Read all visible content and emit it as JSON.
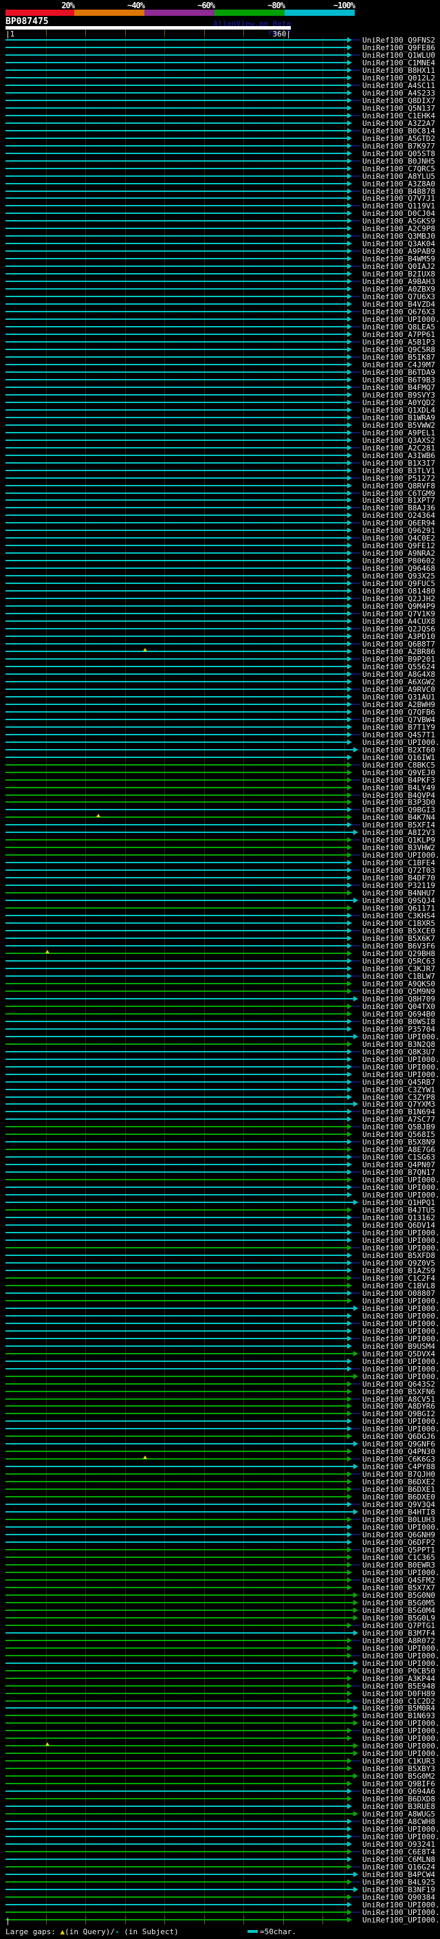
{
  "colors": {
    "cyan": "#00C6C6",
    "green": "#00A800",
    "tail_navy": "#131366",
    "scale_red": "#E81123",
    "scale_orange": "#DE7800",
    "scale_purple": "#8F2A95",
    "scale_green": "#00A000",
    "scale_cyan": "#00B9CE",
    "gap_yellow": "#E8D400",
    "grid_olive": "#62621C",
    "query_white": "#FFFFFF"
  },
  "header": {
    "scale_labels": [
      "20%",
      "~40%",
      "~60%",
      "~80%",
      "~100%"
    ],
    "query_name": "BP087475",
    "watermark": "AlignView.pm Beta rel.7",
    "ruler_start": "|1",
    "ruler_end": "360|"
  },
  "footer": {
    "gaps_prefix": "Large gaps: ",
    "gap_query_symbol": "▲",
    "gaps_mid": "(in Query)/",
    "gap_subject_symbol": "-",
    "gaps_suffix": " (in Subject)",
    "bottom_tick": "|",
    "scalebar_label": "=50char."
  },
  "chart_data": {
    "type": "alignment",
    "query": "BP087475",
    "query_range": [
      1,
      360
    ],
    "ruler_interval_chars": 50,
    "identity_scale": [
      {
        "label": "20%",
        "color": "#E81123"
      },
      {
        "label": "~40%",
        "color": "#DE7800"
      },
      {
        "label": "~60%",
        "color": "#8F2A95"
      },
      {
        "label": "~80%",
        "color": "#00A000"
      },
      {
        "label": "~100%",
        "color": "#00B9CE"
      }
    ],
    "hit_prefix": "UniRef100_",
    "hit_fields": [
      "id",
      "identity_color(c=~100%,g=~80%)",
      "subject_overhang_tail",
      "extended_end",
      "query_gap_mark_x"
    ],
    "hits": [
      [
        "Q9FNS2",
        "c",
        1,
        0
      ],
      [
        "Q9FE86",
        "c",
        0,
        0
      ],
      [
        "Q1WLU0",
        "c",
        1,
        0
      ],
      [
        "C1MNE4",
        "c",
        0,
        0
      ],
      [
        "B8HX11",
        "c",
        1,
        0
      ],
      [
        "Q012L2",
        "c",
        0,
        0
      ],
      [
        "A4SC11",
        "c",
        1,
        0
      ],
      [
        "A4S233",
        "c",
        0,
        0
      ],
      [
        "Q8DIX7",
        "c",
        1,
        0
      ],
      [
        "Q5N137",
        "c",
        0,
        0
      ],
      [
        "C1EHK4",
        "c",
        1,
        0
      ],
      [
        "A3Z2A7",
        "c",
        0,
        0
      ],
      [
        "B0C814",
        "c",
        1,
        0
      ],
      [
        "A5GTD2",
        "c",
        0,
        0
      ],
      [
        "B7K977",
        "c",
        1,
        0
      ],
      [
        "Q05ST8",
        "c",
        0,
        0
      ],
      [
        "B0JNH5",
        "c",
        1,
        0
      ],
      [
        "C7QRC5",
        "c",
        0,
        0
      ],
      [
        "A8YLU5",
        "c",
        1,
        0
      ],
      [
        "A3Z8A0",
        "c",
        0,
        0
      ],
      [
        "B4B878",
        "c",
        1,
        0
      ],
      [
        "Q7V7J1",
        "c",
        0,
        0
      ],
      [
        "Q119V1",
        "c",
        1,
        0
      ],
      [
        "D0CJ04",
        "c",
        0,
        0
      ],
      [
        "A5GKS9",
        "c",
        1,
        0
      ],
      [
        "A2C9P8",
        "c",
        0,
        0
      ],
      [
        "Q3MBJ0",
        "c",
        1,
        0
      ],
      [
        "Q3AK04",
        "c",
        0,
        0
      ],
      [
        "A9PAB9",
        "c",
        1,
        0
      ],
      [
        "B4WM59",
        "c",
        0,
        0
      ],
      [
        "Q0IAJ2",
        "c",
        1,
        0
      ],
      [
        "B2IUX8",
        "c",
        0,
        0
      ],
      [
        "A9BAH3",
        "c",
        1,
        0
      ],
      [
        "A0ZBX9",
        "c",
        0,
        0
      ],
      [
        "Q7U6X3",
        "c",
        1,
        0
      ],
      [
        "B4VZD4",
        "c",
        0,
        0
      ],
      [
        "Q676X3",
        "c",
        1,
        0
      ],
      [
        "UPI000..",
        "c",
        0,
        0
      ],
      [
        "Q8LEA5",
        "c",
        1,
        0
      ],
      [
        "A7PP61",
        "c",
        0,
        0
      ],
      [
        "A5B1P3",
        "c",
        1,
        0
      ],
      [
        "Q9C5R8",
        "c",
        0,
        0
      ],
      [
        "B5IK87",
        "c",
        1,
        0
      ],
      [
        "C4J9M7",
        "c",
        0,
        0
      ],
      [
        "B6TDA9",
        "c",
        1,
        0
      ],
      [
        "B6T9B3",
        "c",
        0,
        0
      ],
      [
        "B4FMQ7",
        "c",
        1,
        0
      ],
      [
        "B9SVY3",
        "c",
        0,
        0
      ],
      [
        "A0YQD2",
        "c",
        1,
        0
      ],
      [
        "Q1XDL4",
        "c",
        0,
        0
      ],
      [
        "B1WRA9",
        "c",
        1,
        0
      ],
      [
        "B5VWW2",
        "c",
        0,
        0
      ],
      [
        "A9PEL1",
        "c",
        1,
        0
      ],
      [
        "Q3AXS2",
        "c",
        0,
        0
      ],
      [
        "A2C281",
        "c",
        1,
        0
      ],
      [
        "A3IWB6",
        "c",
        0,
        0
      ],
      [
        "B1X3I7",
        "c",
        1,
        0
      ],
      [
        "B3TLV1",
        "c",
        0,
        0
      ],
      [
        "P51272",
        "c",
        1,
        0
      ],
      [
        "Q8RVF8",
        "c",
        0,
        0
      ],
      [
        "C6TGM9",
        "c",
        1,
        0
      ],
      [
        "B1XPT7",
        "c",
        0,
        0
      ],
      [
        "B8AJ36",
        "c",
        1,
        0
      ],
      [
        "O24364",
        "c",
        0,
        0
      ],
      [
        "Q6ER94",
        "c",
        1,
        0
      ],
      [
        "Q96291",
        "c",
        0,
        0
      ],
      [
        "Q4C0E2",
        "c",
        1,
        0
      ],
      [
        "Q9FE12",
        "c",
        0,
        0
      ],
      [
        "A9NRA2",
        "c",
        1,
        0
      ],
      [
        "P80602",
        "c",
        0,
        0
      ],
      [
        "Q96468",
        "c",
        1,
        0
      ],
      [
        "Q93X25",
        "c",
        0,
        0
      ],
      [
        "Q9FUC5",
        "c",
        1,
        0
      ],
      [
        "O81480",
        "c",
        0,
        0
      ],
      [
        "Q2JJH2",
        "c",
        1,
        0
      ],
      [
        "Q9M4P9",
        "c",
        0,
        0
      ],
      [
        "Q7V1K9",
        "c",
        1,
        0
      ],
      [
        "A4CUX8",
        "c",
        0,
        0
      ],
      [
        "Q2JQS6",
        "c",
        1,
        0
      ],
      [
        "A3PD10",
        "c",
        0,
        0
      ],
      [
        "Q6B8T7",
        "c",
        1,
        0
      ],
      [
        "A2BR86",
        "c",
        0,
        0,
        208
      ],
      [
        "B9P201",
        "c",
        1,
        0
      ],
      [
        "Q55624",
        "c",
        0,
        0
      ],
      [
        "A8G4X8",
        "c",
        1,
        0
      ],
      [
        "A6XGW2",
        "c",
        0,
        0
      ],
      [
        "A9RVC0",
        "c",
        1,
        0
      ],
      [
        "Q31AU1",
        "c",
        0,
        0
      ],
      [
        "A2BWH9",
        "c",
        1,
        0
      ],
      [
        "Q7QFB6",
        "c",
        0,
        0
      ],
      [
        "Q7VBW4",
        "c",
        1,
        0
      ],
      [
        "B7T1Y9",
        "c",
        0,
        0
      ],
      [
        "Q4S7T1",
        "c",
        1,
        0
      ],
      [
        "UPI000..",
        "c",
        0,
        0
      ],
      [
        "B2XT60",
        "c",
        1,
        1
      ],
      [
        "Q16IW1",
        "c",
        0,
        0
      ],
      [
        "C8BKC5",
        "g",
        1,
        0
      ],
      [
        "Q9VEJ0",
        "g",
        0,
        0
      ],
      [
        "B4PKF3",
        "g",
        1,
        0
      ],
      [
        "B4LY49",
        "g",
        0,
        0
      ],
      [
        "B4QVP4",
        "g",
        1,
        0
      ],
      [
        "B3P3D0",
        "g",
        0,
        0
      ],
      [
        "Q9BGI3",
        "c",
        1,
        0
      ],
      [
        "B4K7N4",
        "g",
        0,
        0,
        140
      ],
      [
        "B5XFI4",
        "c",
        1,
        0
      ],
      [
        "A8I2V3",
        "c",
        0,
        1
      ],
      [
        "Q1KLP9",
        "g",
        1,
        0
      ],
      [
        "B3VHW2",
        "g",
        0,
        0
      ],
      [
        "UPI000..",
        "g",
        1,
        0
      ],
      [
        "C1BFE4",
        "c",
        0,
        0
      ],
      [
        "Q72T03",
        "c",
        1,
        0
      ],
      [
        "B4DF70",
        "c",
        0,
        0
      ],
      [
        "P32119",
        "c",
        1,
        0
      ],
      [
        "B4NHU7",
        "g",
        0,
        0
      ],
      [
        "Q9SQJ4",
        "c",
        1,
        1
      ],
      [
        "Q61171",
        "g",
        0,
        0
      ],
      [
        "C3KHS4",
        "c",
        1,
        0
      ],
      [
        "C1BXR5",
        "c",
        0,
        0
      ],
      [
        "B5XCE0",
        "c",
        1,
        0
      ],
      [
        "B5X6K7",
        "c",
        0,
        0
      ],
      [
        "B6V3F6",
        "c",
        1,
        0
      ],
      [
        "Q29BH8",
        "g",
        0,
        0,
        66
      ],
      [
        "Q5RC63",
        "c",
        1,
        0
      ],
      [
        "C3KJR7",
        "c",
        0,
        0
      ],
      [
        "C1BLW7",
        "c",
        1,
        0
      ],
      [
        "A9QKS0",
        "g",
        0,
        0
      ],
      [
        "Q5M9N9",
        "g",
        1,
        0
      ],
      [
        "Q8H709",
        "c",
        0,
        1
      ],
      [
        "Q04TX0",
        "g",
        1,
        0
      ],
      [
        "Q694B0",
        "g",
        0,
        0
      ],
      [
        "B0WSI8",
        "c",
        1,
        0
      ],
      [
        "P35704",
        "c",
        0,
        0
      ],
      [
        "UPI000..",
        "c",
        1,
        1
      ],
      [
        "B3N2Q8",
        "g",
        0,
        0
      ],
      [
        "Q8K3U7",
        "c",
        1,
        0
      ],
      [
        "UPI000..",
        "c",
        0,
        0
      ],
      [
        "UPI000..",
        "c",
        1,
        0
      ],
      [
        "UPI000..",
        "c",
        0,
        0
      ],
      [
        "Q45RB7",
        "c",
        1,
        0
      ],
      [
        "C3ZYW1",
        "c",
        0,
        0
      ],
      [
        "C3ZYP8",
        "c",
        0,
        0
      ],
      [
        "Q7YXM3",
        "c",
        0,
        1
      ],
      [
        "B1N694",
        "c",
        1,
        0
      ],
      [
        "A7SC77",
        "c",
        0,
        0
      ],
      [
        "Q5BJB9",
        "g",
        1,
        0
      ],
      [
        "Q568I5",
        "g",
        0,
        0
      ],
      [
        "B5X8N9",
        "c",
        1,
        0
      ],
      [
        "A8E7G6",
        "g",
        0,
        0
      ],
      [
        "C1SG63",
        "c",
        1,
        0
      ],
      [
        "Q4PN07",
        "c",
        0,
        0
      ],
      [
        "B7QN17",
        "c",
        1,
        0
      ],
      [
        "UPI000..",
        "g",
        0,
        0
      ],
      [
        "UPI000..",
        "c",
        1,
        0
      ],
      [
        "UPI000..",
        "c",
        0,
        0
      ],
      [
        "Q1HPQ1",
        "c",
        1,
        1
      ],
      [
        "B4JTU5",
        "g",
        0,
        0
      ],
      [
        "Q13162",
        "c",
        1,
        0
      ],
      [
        "Q6DV14",
        "c",
        0,
        0
      ],
      [
        "UPI000..",
        "c",
        1,
        0
      ],
      [
        "UPI000..",
        "c",
        0,
        0
      ],
      [
        "UPI000..",
        "g",
        1,
        0
      ],
      [
        "B5XFD8",
        "c",
        0,
        0
      ],
      [
        "Q9Z0V5",
        "c",
        1,
        0
      ],
      [
        "B1AZS9",
        "c",
        0,
        0
      ],
      [
        "C1C2F4",
        "g",
        1,
        0
      ],
      [
        "C1BVL8",
        "g",
        0,
        0
      ],
      [
        "O08807",
        "c",
        1,
        0
      ],
      [
        "UPI000..",
        "g",
        0,
        0
      ],
      [
        "UPI000..",
        "c",
        1,
        1
      ],
      [
        "UPI000..",
        "c",
        0,
        0
      ],
      [
        "UPI000..",
        "c",
        1,
        0
      ],
      [
        "UPI000..",
        "c",
        0,
        0
      ],
      [
        "UPI000..",
        "c",
        1,
        0
      ],
      [
        "B9USM4",
        "c",
        0,
        0
      ],
      [
        "Q5DVX4",
        "g",
        1,
        1
      ],
      [
        "UPI000..",
        "c",
        0,
        0
      ],
      [
        "UPI000..",
        "c",
        1,
        0
      ],
      [
        "UPI000..",
        "g",
        0,
        1
      ],
      [
        "Q643S2",
        "g",
        1,
        0
      ],
      [
        "B5XFN6",
        "g",
        0,
        0
      ],
      [
        "A8CV51",
        "g",
        1,
        0
      ],
      [
        "A8DYR6",
        "g",
        0,
        0
      ],
      [
        "Q9BGI2",
        "g",
        1,
        0
      ],
      [
        "UPI000..",
        "c",
        0,
        0
      ],
      [
        "UPI000..",
        "c",
        1,
        0
      ],
      [
        "Q6DGJ6",
        "g",
        0,
        0
      ],
      [
        "Q9GNF6",
        "c",
        1,
        1
      ],
      [
        "Q4PN30",
        "g",
        0,
        0
      ],
      [
        "C6K6G3",
        "g",
        1,
        0,
        208
      ],
      [
        "C4PY88",
        "c",
        0,
        1
      ],
      [
        "B7QJH0",
        "g",
        1,
        0
      ],
      [
        "B6DXE2",
        "g",
        0,
        0
      ],
      [
        "B6DXE1",
        "g",
        1,
        0
      ],
      [
        "B6DXE0",
        "g",
        0,
        0
      ],
      [
        "Q9V3Q4",
        "c",
        1,
        0
      ],
      [
        "B4HTI8",
        "c",
        0,
        1
      ],
      [
        "B0LUH3",
        "g",
        1,
        0
      ],
      [
        "UPI000..",
        "c",
        0,
        0
      ],
      [
        "Q6GNH9",
        "c",
        1,
        0
      ],
      [
        "Q6DFP2",
        "c",
        0,
        0
      ],
      [
        "Q5PPT1",
        "g",
        1,
        0
      ],
      [
        "C1C365",
        "g",
        0,
        0
      ],
      [
        "B0EWR3",
        "g",
        1,
        0
      ],
      [
        "UPI000..",
        "g",
        0,
        0
      ],
      [
        "Q4SFM2",
        "g",
        1,
        0
      ],
      [
        "B5X7X7",
        "g",
        0,
        0
      ],
      [
        "B5G0N0",
        "g",
        1,
        1
      ],
      [
        "B5G0M5",
        "g",
        0,
        1
      ],
      [
        "B5G0M4",
        "g",
        1,
        1
      ],
      [
        "B5G0L9",
        "g",
        0,
        1
      ],
      [
        "Q7PTG1",
        "g",
        1,
        0
      ],
      [
        "B3M7F4",
        "c",
        0,
        1
      ],
      [
        "A8R072",
        "g",
        1,
        0
      ],
      [
        "UPI000..",
        "g",
        0,
        0
      ],
      [
        "UPI000..",
        "g",
        1,
        0
      ],
      [
        "UPI000..",
        "c",
        0,
        1
      ],
      [
        "P0CB50",
        "g",
        1,
        1
      ],
      [
        "A3KP44",
        "g",
        0,
        0
      ],
      [
        "B5E948",
        "g",
        1,
        0
      ],
      [
        "D0FH89",
        "g",
        0,
        0
      ],
      [
        "C1C2D2",
        "g",
        1,
        0
      ],
      [
        "B5M0R4",
        "c",
        0,
        1
      ],
      [
        "B1N693",
        "g",
        1,
        1
      ],
      [
        "UPI000..",
        "g",
        0,
        1
      ],
      [
        "UPI000..",
        "g",
        1,
        0
      ],
      [
        "UPI000..",
        "g",
        0,
        0
      ],
      [
        "UPI000..",
        "g",
        1,
        1,
        66
      ],
      [
        "UPI000..",
        "g",
        0,
        1
      ],
      [
        "C1KUR3",
        "g",
        1,
        0
      ],
      [
        "B5XBY3",
        "g",
        0,
        0
      ],
      [
        "B5G0M2",
        "g",
        1,
        1
      ],
      [
        "Q9BIF6",
        "g",
        0,
        0
      ],
      [
        "Q694A6",
        "c",
        1,
        0
      ],
      [
        "B6DXD8",
        "g",
        0,
        0
      ],
      [
        "B3RUE8",
        "c",
        0,
        0
      ],
      [
        "A8WUG5",
        "g",
        0,
        1
      ],
      [
        "A8CWH8",
        "c",
        1,
        0
      ],
      [
        "UPI000..",
        "c",
        0,
        0
      ],
      [
        "UPI000..",
        "c",
        1,
        0
      ],
      [
        "O93241",
        "c",
        0,
        0
      ],
      [
        "C6E8T4",
        "g",
        1,
        0
      ],
      [
        "C6MLN8",
        "c",
        0,
        0
      ],
      [
        "Q16G24",
        "g",
        1,
        0
      ],
      [
        "B4PCW4",
        "c",
        0,
        1
      ],
      [
        "B4L925",
        "g",
        1,
        0
      ],
      [
        "B3NF19",
        "c",
        0,
        1
      ],
      [
        "Q90384",
        "g",
        1,
        0
      ],
      [
        "UPI000..",
        "c",
        0,
        0
      ],
      [
        "UPI000..",
        "g",
        1,
        0
      ],
      [
        "UPI000..",
        "g",
        0,
        0
      ]
    ]
  }
}
